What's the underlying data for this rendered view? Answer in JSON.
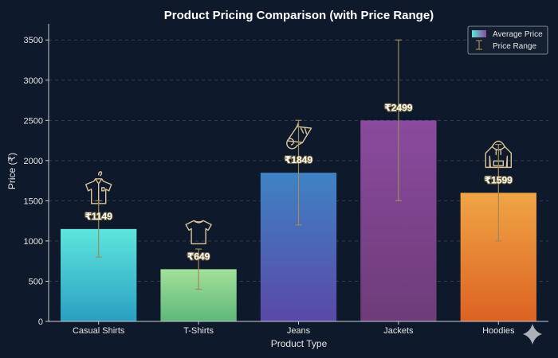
{
  "chart_data": {
    "type": "bar",
    "title": "Product Pricing Comparison (with Price Range)",
    "xlabel": "Product Type",
    "ylabel": "Price (₹)",
    "ylim": [
      0,
      3700
    ],
    "yticks": [
      0,
      500,
      1000,
      1500,
      2000,
      2500,
      3000,
      3500
    ],
    "grid": true,
    "legend_position": "top-right",
    "legend": [
      "Average Price",
      "Price Range"
    ],
    "categories": [
      "Casual Shirts",
      "T-Shirts",
      "Jeans",
      "Jackets",
      "Hoodies"
    ],
    "values": [
      1149,
      649,
      1849,
      2499,
      1599
    ],
    "data_labels": [
      "₹1149",
      "₹649",
      "₹1849",
      "₹2499",
      "₹1599"
    ],
    "range_low": [
      800,
      400,
      1200,
      1500,
      1000
    ],
    "range_high": [
      1500,
      900,
      2500,
      3500,
      2200
    ],
    "icons": [
      "shirt-icon",
      "tshirt-icon",
      "jeans-icon",
      "",
      "hoodie-icon"
    ],
    "colors": {
      "bars": [
        [
          "#5ee6dc",
          "#2a9fc2"
        ],
        [
          "#a4e09a",
          "#5eb87a"
        ],
        [
          "#3f82c4",
          "#5a48a8"
        ],
        [
          "#8a4a9e",
          "#6e3c78"
        ],
        [
          "#f0a546",
          "#dc6222"
        ]
      ]
    }
  }
}
